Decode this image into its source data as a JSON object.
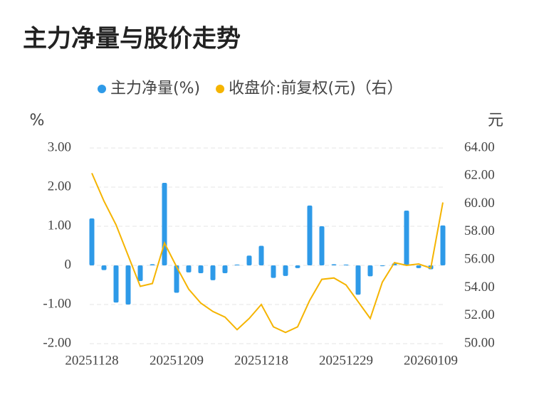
{
  "chart_data": {
    "type": "bar_line",
    "title": "主力净量与股价走势",
    "ylabel": "%",
    "y2label": "元",
    "categories": [
      "20251128",
      null,
      null,
      null,
      null,
      null,
      null,
      "20251209",
      null,
      null,
      null,
      null,
      null,
      null,
      "20251218",
      null,
      null,
      null,
      null,
      null,
      null,
      "20251229",
      null,
      null,
      null,
      null,
      null,
      null,
      "20260109",
      null
    ],
    "series": [
      {
        "name": "主力净量(%)",
        "color": "#2e9ae8",
        "kind": "bar",
        "values": [
          1.2,
          -0.12,
          -0.95,
          -1.0,
          -0.4,
          0.03,
          2.11,
          -0.7,
          -0.18,
          -0.2,
          -0.38,
          -0.2,
          0.02,
          0.25,
          0.5,
          -0.32,
          -0.27,
          -0.07,
          1.53,
          1.0,
          0.03,
          0.02,
          -0.75,
          -0.28,
          -0.02,
          0.05,
          1.4,
          -0.07,
          -0.1,
          1.02
        ]
      },
      {
        "name": "收盘价:前复权(元)（右）",
        "color": "#f5b400",
        "kind": "line",
        "axis": "y2",
        "values": [
          62.2,
          60.2,
          58.5,
          56.3,
          54.1,
          54.3,
          57.2,
          55.5,
          53.9,
          52.9,
          52.3,
          51.9,
          51.0,
          51.8,
          52.8,
          51.2,
          50.8,
          51.2,
          53.1,
          54.6,
          54.7,
          54.2,
          53.0,
          51.8,
          54.4,
          55.8,
          55.6,
          55.7,
          55.4,
          60.1
        ]
      }
    ],
    "ylim": [
      -2,
      3
    ],
    "yticks": [
      {
        "value": 3,
        "label": "3.00"
      },
      {
        "value": 2,
        "label": "2.00"
      },
      {
        "value": 1,
        "label": "1.00"
      },
      0,
      {
        "value": -1,
        "label": "-1.00"
      },
      {
        "value": -2,
        "label": "-2.00"
      }
    ],
    "y2lim": [
      50,
      64
    ],
    "y2ticks": [
      {
        "value": 64,
        "label": "64.00"
      },
      {
        "value": 62,
        "label": "62.00"
      },
      {
        "value": 60,
        "label": "60.00"
      },
      {
        "value": 58,
        "label": "58.00"
      },
      {
        "value": 56,
        "label": "56.00"
      },
      {
        "value": 54,
        "label": "54.00"
      },
      {
        "value": 52,
        "label": "52.00"
      },
      {
        "value": 50,
        "label": "50.00"
      }
    ],
    "grid": true
  }
}
